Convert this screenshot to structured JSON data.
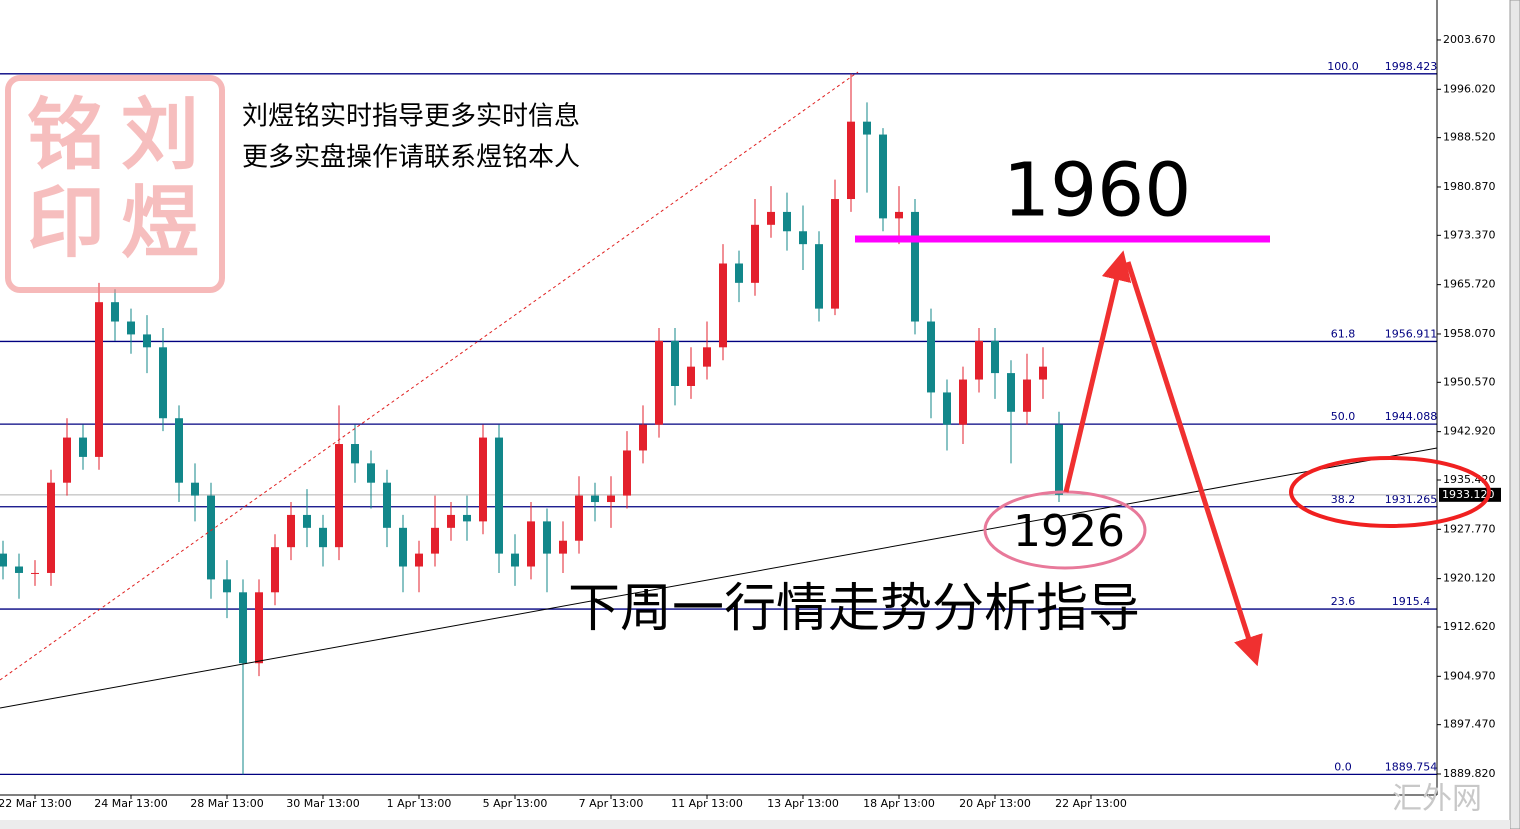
{
  "chart_data": {
    "type": "candlestick",
    "ylim": [
      1886.56,
      2009.87
    ],
    "yticks": [
      {
        "value": 2003.67,
        "label": "2003.670"
      },
      {
        "value": 1996.02,
        "label": "1996.020"
      },
      {
        "value": 1988.52,
        "label": "1988.520"
      },
      {
        "value": 1980.87,
        "label": "1980.870"
      },
      {
        "value": 1973.37,
        "label": "1973.370"
      },
      {
        "value": 1965.72,
        "label": "1965.720"
      },
      {
        "value": 1958.07,
        "label": "1958.070"
      },
      {
        "value": 1950.57,
        "label": "1950.570"
      },
      {
        "value": 1942.92,
        "label": "1942.920"
      },
      {
        "value": 1935.42,
        "label": "1935.420"
      },
      {
        "value": 1927.77,
        "label": "1927.770"
      },
      {
        "value": 1920.12,
        "label": "1920.120"
      },
      {
        "value": 1912.62,
        "label": "1912.620"
      },
      {
        "value": 1904.97,
        "label": "1904.970"
      },
      {
        "value": 1897.47,
        "label": "1897.470"
      },
      {
        "value": 1889.82,
        "label": "1889.820"
      }
    ],
    "up_color": "#e3202c",
    "down_color": "#12878a",
    "categories": [
      null,
      null,
      "22 Mar 13:00",
      null,
      null,
      null,
      null,
      null,
      "24 Mar 13:00",
      null,
      null,
      null,
      null,
      null,
      "28 Mar 13:00",
      null,
      null,
      null,
      null,
      null,
      "30 Mar 13:00",
      null,
      null,
      null,
      null,
      null,
      "1 Apr 13:00",
      null,
      null,
      null,
      null,
      null,
      "5 Apr 13:00",
      null,
      null,
      null,
      null,
      null,
      "7 Apr 13:00",
      null,
      null,
      null,
      null,
      null,
      "11 Apr 13:00",
      null,
      null,
      null,
      null,
      null,
      "13 Apr 13:00",
      null,
      null,
      null,
      null,
      null,
      "18 Apr 13:00",
      null,
      null,
      null,
      null,
      null,
      "20 Apr 13:00",
      null,
      null,
      null,
      null,
      null,
      "22 Apr 13:00"
    ],
    "open": [
      1924,
      1922,
      1921,
      1921,
      1935,
      1942,
      1939,
      1963,
      1960,
      1958,
      1956,
      1945,
      1935,
      1933,
      1920,
      1918,
      1907,
      1918,
      1925,
      1930,
      1928,
      1925,
      1941,
      1938,
      1935,
      1928,
      1922,
      1924,
      1928,
      1930,
      1929,
      1942,
      1924,
      1922,
      1929,
      1924,
      1926,
      1933,
      1932,
      1933,
      1940,
      1944,
      1957,
      1950,
      1953,
      1956,
      1969,
      1966,
      1975,
      1977,
      1974,
      1972,
      1962,
      1979,
      1991,
      1989,
      1976,
      1977,
      1960,
      1949,
      1944,
      1951,
      1957,
      1952,
      1946,
      1951,
      1944,
      null,
      null
    ],
    "high": [
      1926,
      1924,
      1923,
      1937,
      1945,
      1944,
      1966,
      1965,
      1962,
      1961,
      1959,
      1947,
      1938,
      1935,
      1923,
      1920,
      1920,
      1927,
      1932,
      1934,
      1930,
      1947,
      1944,
      1940,
      1937,
      1930,
      1926,
      1933,
      1932,
      1933,
      1944,
      1944,
      1927,
      1932,
      1931,
      1929,
      1936,
      1935,
      1936,
      1943,
      1947,
      1959,
      1959,
      1956,
      1960,
      1972,
      1971,
      1979,
      1981,
      1980,
      1978,
      1974,
      1982,
      1998.423,
      1994,
      1990,
      1981,
      1979,
      1962,
      1951,
      1953,
      1959,
      1959,
      1954,
      1955,
      1956,
      1946,
      null,
      null
    ],
    "low": [
      1920,
      1917,
      1919,
      1919,
      1933,
      1937,
      1937,
      1957,
      1955,
      1952,
      1943,
      1932,
      1929,
      1917,
      1914,
      1889.754,
      1905,
      1916,
      1923,
      1925,
      1922,
      1923,
      1935,
      1931,
      1925,
      1918,
      1918,
      1922,
      1926,
      1926,
      1927,
      1921,
      1919,
      1920,
      1918,
      1921,
      1924,
      1929,
      1928,
      1931,
      1938,
      1942,
      1947,
      1948,
      1951,
      1954,
      1963,
      1964,
      1973,
      1971,
      1968,
      1960,
      1961,
      1977,
      1980,
      1974,
      1972,
      1958,
      1945,
      1940,
      1941,
      1949,
      1948,
      1938,
      1944,
      1948,
      1932,
      null,
      null
    ],
    "close": [
      1922,
      1921,
      1921,
      1935,
      1942,
      1939,
      1963,
      1960,
      1958,
      1956,
      1945,
      1935,
      1933,
      1920,
      1918,
      1907,
      1918,
      1925,
      1930,
      1928,
      1925,
      1941,
      1938,
      1935,
      1928,
      1922,
      1924,
      1928,
      1930,
      1929,
      1942,
      1924,
      1922,
      1929,
      1924,
      1926,
      1933,
      1932,
      1933,
      1940,
      1944,
      1957,
      1950,
      1953,
      1956,
      1969,
      1966,
      1975,
      1977,
      1974,
      1972,
      1962,
      1979,
      1991,
      1989,
      1976,
      1977,
      1960,
      1949,
      1944,
      1951,
      1957,
      1952,
      1946,
      1951,
      1953,
      1933.12,
      null,
      null
    ],
    "fib_levels": [
      {
        "level": "100.0",
        "value": 1998.423
      },
      {
        "level": "61.8",
        "value": 1956.911
      },
      {
        "level": "50.0",
        "value": 1944.088
      },
      {
        "level": "38.2",
        "value": 1931.265
      },
      {
        "level": "23.6",
        "value": 1915.4
      },
      {
        "level": "0.0",
        "value": 1889.754
      }
    ],
    "last_price": {
      "value": 1933.12,
      "label": "1933.120"
    }
  },
  "annotations": {
    "stamp": [
      "刘",
      "煜",
      "铭",
      "印"
    ],
    "notes": [
      "刘煜铭实时指导更多实时信息",
      "更多实盘操作请联系煜铭本人"
    ],
    "target_high": "1960",
    "target_low": "1926",
    "headline": "下周一行情走势分析指导",
    "site": "汇外网"
  }
}
